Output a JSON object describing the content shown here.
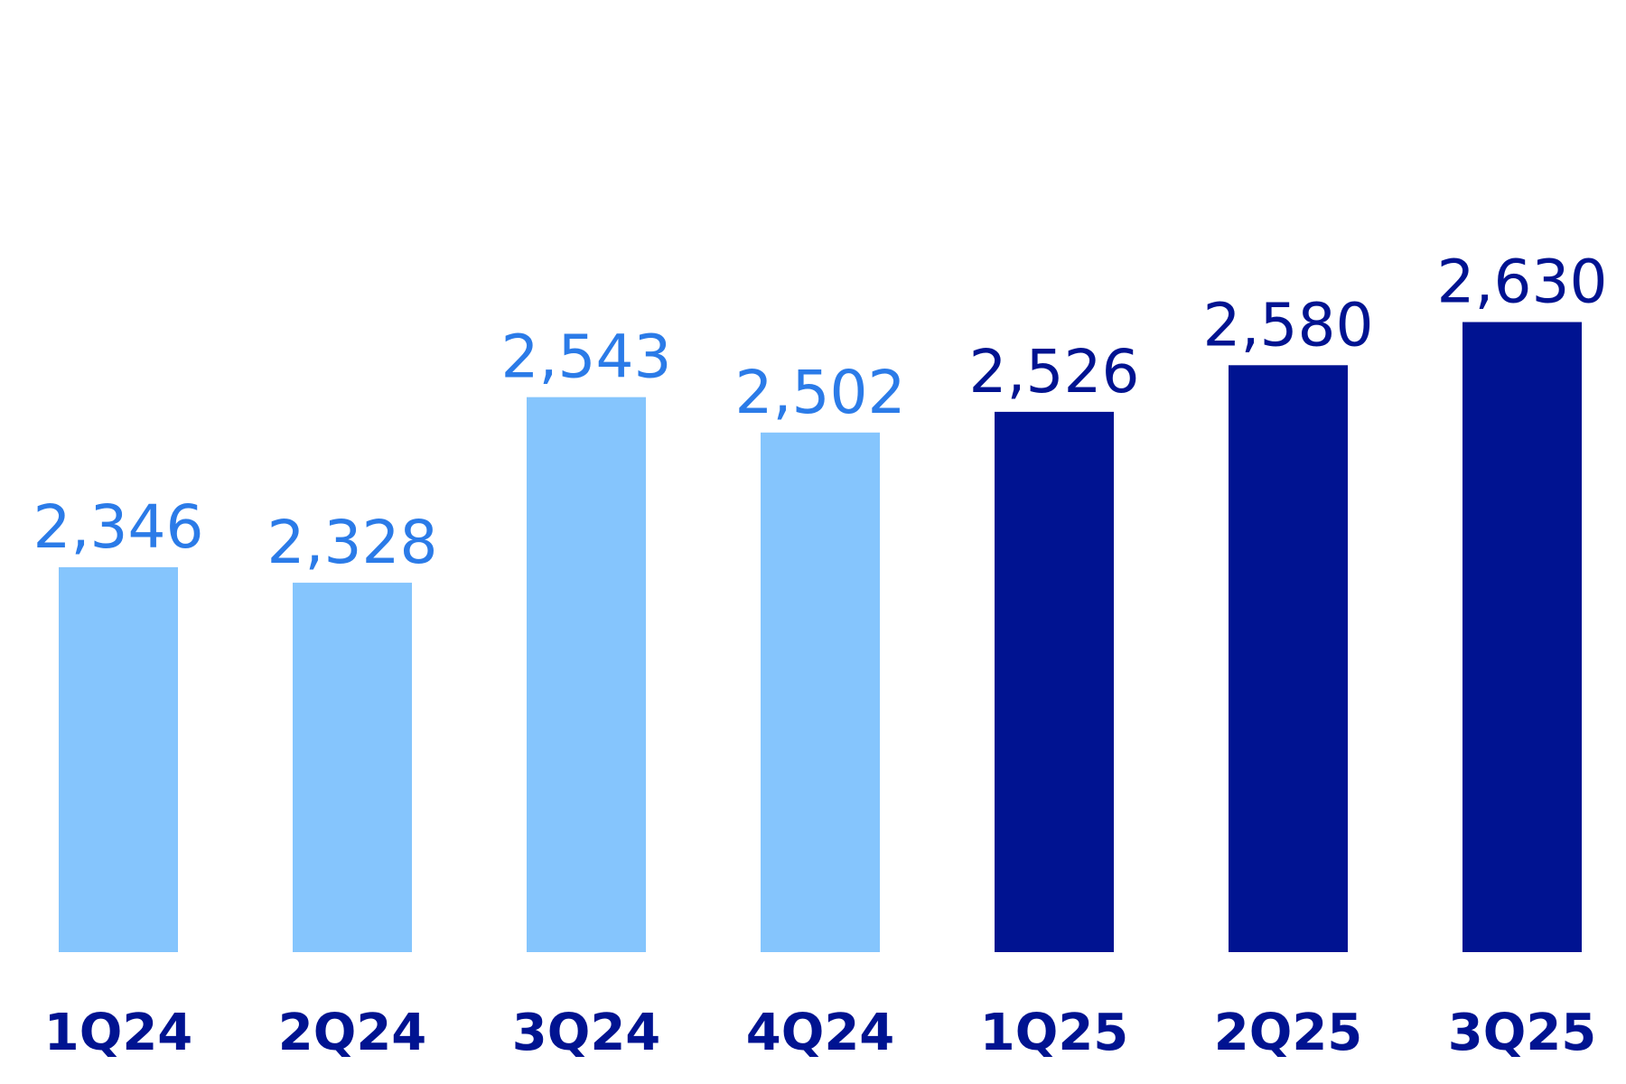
{
  "chart_data": {
    "type": "bar",
    "categories": [
      "1Q24",
      "2Q24",
      "3Q24",
      "4Q24",
      "1Q25",
      "2Q25",
      "3Q25"
    ],
    "values": [
      2346,
      2328,
      2543,
      2502,
      2526,
      2580,
      2630
    ],
    "value_labels": [
      "2,346",
      "2,328",
      "2,543",
      "2,502",
      "2,526",
      "2,580",
      "2,630"
    ],
    "colors": [
      "#85c5fd",
      "#85c5fd",
      "#85c5fd",
      "#85c5fd",
      "#001391",
      "#001391",
      "#001391"
    ],
    "label_colors": [
      "#2b7be8",
      "#2b7be8",
      "#2b7be8",
      "#2b7be8",
      "#001391",
      "#001391",
      "#001391"
    ],
    "category_color": "#001391",
    "ylim": [
      1900,
      3000
    ]
  }
}
